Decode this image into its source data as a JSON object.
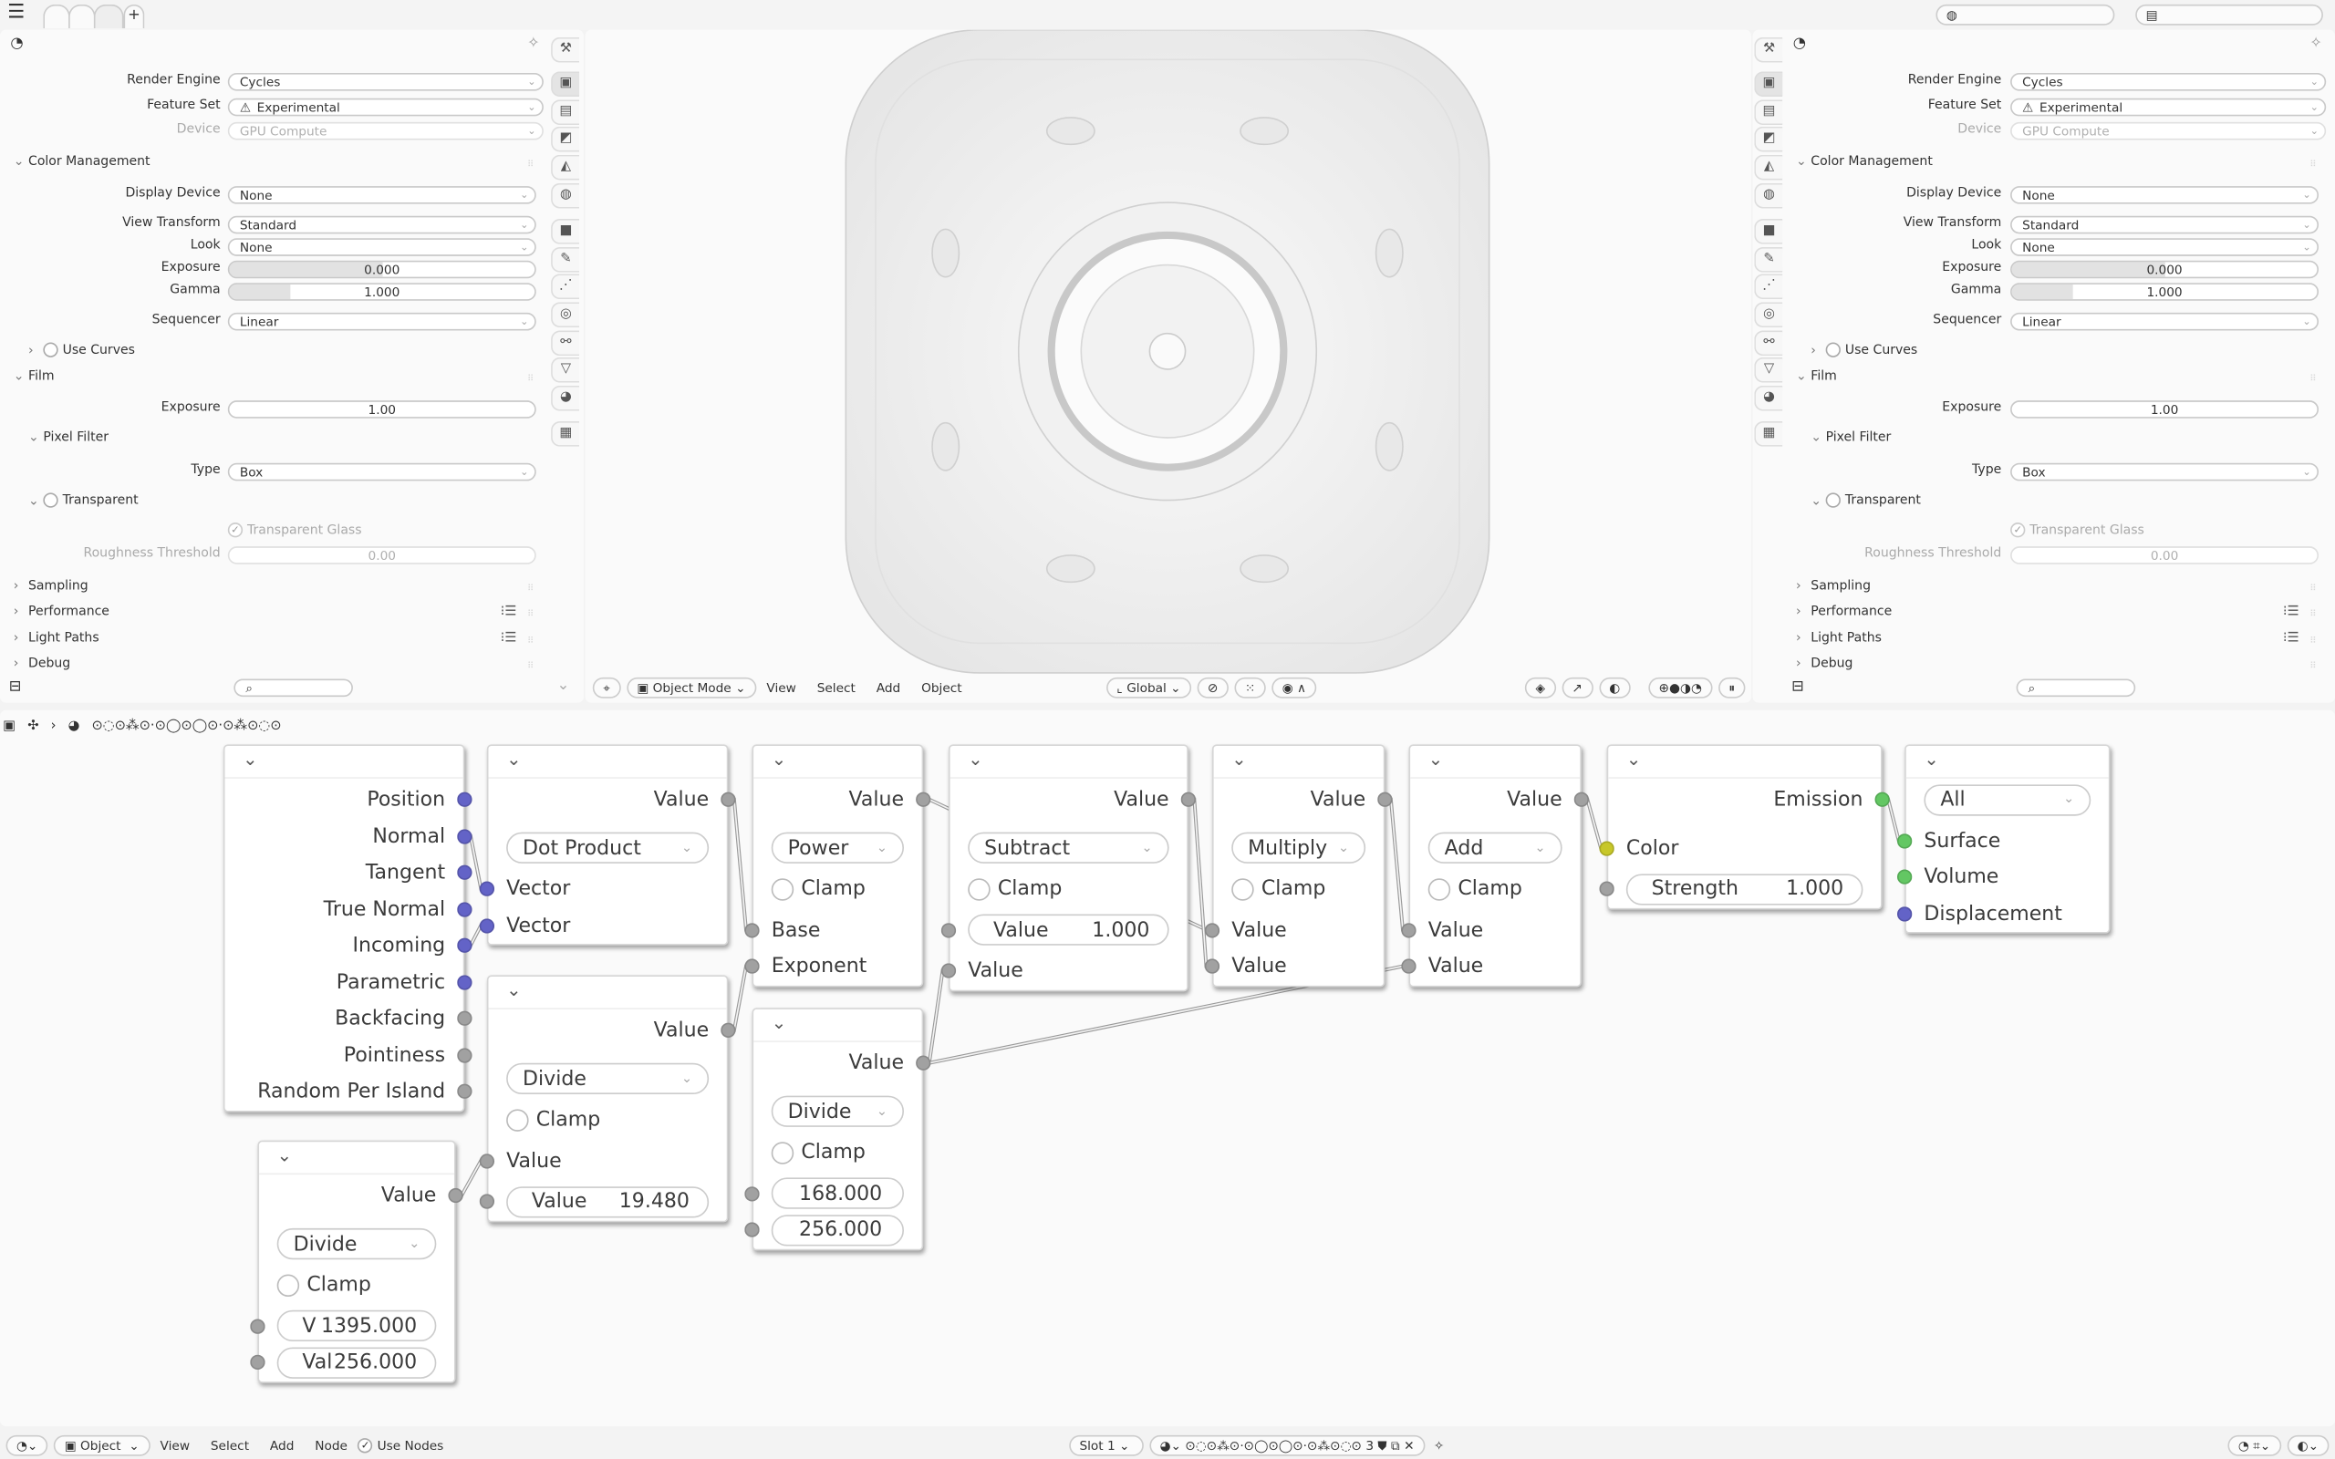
{
  "colors": {
    "socket_vector": "#6363c7",
    "socket_float": "#a1a1a1",
    "socket_color": "#c7c729",
    "socket_shader": "#63c763",
    "background": "#fafafa"
  },
  "topbar": {
    "menu_icon": "hamburger-icon",
    "add_tab": "+"
  },
  "properties": {
    "rows": [
      {
        "kind": "select",
        "label": "Render Engine",
        "value": "Cycles"
      },
      {
        "kind": "select-warn",
        "label": "Feature Set",
        "value": "Experimental"
      },
      {
        "kind": "select-dis",
        "label": "Device",
        "value": "GPU Compute"
      },
      {
        "kind": "section-open",
        "label": "Color Management"
      },
      {
        "kind": "select",
        "label": "Display Device",
        "value": "None"
      },
      {
        "kind": "select",
        "label": "View Transform",
        "value": "Standard"
      },
      {
        "kind": "select",
        "label": "Look",
        "value": "None"
      },
      {
        "kind": "slider",
        "label": "Exposure",
        "value": "0.000",
        "fill": 0.5
      },
      {
        "kind": "slider",
        "label": "Gamma",
        "value": "1.000",
        "fill": 0.2
      },
      {
        "kind": "select",
        "label": "Sequencer",
        "value": "Linear"
      },
      {
        "kind": "subcheck-closed",
        "label": "Use Curves",
        "checked": false
      },
      {
        "kind": "section-open",
        "label": "Film"
      },
      {
        "kind": "number",
        "label": "Exposure",
        "value": "1.00"
      },
      {
        "kind": "sub-open",
        "label": "Pixel Filter"
      },
      {
        "kind": "select",
        "label": "Type",
        "value": "Box"
      },
      {
        "kind": "subcheck-open",
        "label": "Transparent",
        "checked": false
      },
      {
        "kind": "check-dis",
        "label": "Transparent Glass",
        "checked": true
      },
      {
        "kind": "number-dis",
        "label": "Roughness Threshold",
        "value": "0.00"
      },
      {
        "kind": "section-closed",
        "label": "Sampling"
      },
      {
        "kind": "section-list",
        "label": "Performance"
      },
      {
        "kind": "section-list",
        "label": "Light Paths"
      },
      {
        "kind": "section-closed",
        "label": "Debug"
      }
    ],
    "tabs": [
      "tool",
      "render",
      "output",
      "view-layer",
      "scene",
      "world",
      "object",
      "modifiers",
      "particles",
      "physics",
      "constraints",
      "data",
      "material",
      "texture"
    ]
  },
  "viewport": {
    "header": {
      "mode": "Object Mode",
      "menus": [
        "View",
        "Select",
        "Add",
        "Object"
      ],
      "orientation": "Global"
    }
  },
  "node_editor": {
    "breadcrumb": "⊙◌⊙⁂⊙·⊙◯⊙◯⊙·⊙⁂⊙◌⊙",
    "nodes": [
      {
        "id": "geometry",
        "rows": [
          {
            "t": "out",
            "label": "Position",
            "s": "vector"
          },
          {
            "t": "out",
            "label": "Normal",
            "s": "vector"
          },
          {
            "t": "out",
            "label": "Tangent",
            "s": "vector"
          },
          {
            "t": "out",
            "label": "True Normal",
            "s": "vector"
          },
          {
            "t": "out",
            "label": "Incoming",
            "s": "vector"
          },
          {
            "t": "out",
            "label": "Parametric",
            "s": "vector"
          },
          {
            "t": "out",
            "label": "Backfacing",
            "s": "float"
          },
          {
            "t": "out",
            "label": "Pointiness",
            "s": "float"
          },
          {
            "t": "out",
            "label": "Random Per Island",
            "s": "float"
          }
        ]
      },
      {
        "id": "dot-product",
        "rows": [
          {
            "t": "out",
            "label": "Value",
            "s": "float"
          },
          {
            "t": "dd",
            "label": "Dot Product"
          },
          {
            "t": "in",
            "label": "Vector",
            "s": "vector"
          },
          {
            "t": "in",
            "label": "Vector",
            "s": "vector"
          }
        ]
      },
      {
        "id": "divide-a",
        "rows": [
          {
            "t": "out",
            "label": "Value",
            "s": "float"
          },
          {
            "t": "dd",
            "label": "Divide"
          },
          {
            "t": "cb",
            "label": "Clamp"
          },
          {
            "t": "in",
            "label": "Value",
            "s": "float"
          },
          {
            "t": "field",
            "label": "Value",
            "value": "19.480",
            "s": "float"
          }
        ]
      },
      {
        "id": "divide-b",
        "rows": [
          {
            "t": "out",
            "label": "Value",
            "s": "float"
          },
          {
            "t": "dd",
            "label": "Divide"
          },
          {
            "t": "cb",
            "label": "Clamp"
          },
          {
            "t": "field",
            "label": "V",
            "value": "1395.000",
            "s": "float"
          },
          {
            "t": "field",
            "label": "Val",
            "value": "256.000",
            "s": "float"
          }
        ]
      },
      {
        "id": "power",
        "rows": [
          {
            "t": "out",
            "label": "Value",
            "s": "float"
          },
          {
            "t": "dd",
            "label": "Power"
          },
          {
            "t": "cb",
            "label": "Clamp"
          },
          {
            "t": "in",
            "label": "Base",
            "s": "float"
          },
          {
            "t": "in",
            "label": "Exponent",
            "s": "float"
          }
        ]
      },
      {
        "id": "divide-c",
        "rows": [
          {
            "t": "out",
            "label": "Value",
            "s": "float"
          },
          {
            "t": "dd",
            "label": "Divide"
          },
          {
            "t": "cb",
            "label": "Clamp"
          },
          {
            "t": "field",
            "label": "",
            "value": "168.000",
            "s": "float"
          },
          {
            "t": "field",
            "label": "",
            "value": "256.000",
            "s": "float"
          }
        ]
      },
      {
        "id": "subtract",
        "rows": [
          {
            "t": "out",
            "label": "Value",
            "s": "float"
          },
          {
            "t": "dd",
            "label": "Subtract"
          },
          {
            "t": "cb",
            "label": "Clamp"
          },
          {
            "t": "field",
            "label": "Value",
            "value": "1.000",
            "s": "float"
          },
          {
            "t": "in",
            "label": "Value",
            "s": "float"
          }
        ]
      },
      {
        "id": "multiply",
        "rows": [
          {
            "t": "out",
            "label": "Value",
            "s": "float"
          },
          {
            "t": "dd",
            "label": "Multiply"
          },
          {
            "t": "cb",
            "label": "Clamp"
          },
          {
            "t": "in",
            "label": "Value",
            "s": "float"
          },
          {
            "t": "in",
            "label": "Value",
            "s": "float"
          }
        ]
      },
      {
        "id": "add",
        "rows": [
          {
            "t": "out",
            "label": "Value",
            "s": "float"
          },
          {
            "t": "dd",
            "label": "Add"
          },
          {
            "t": "cb",
            "label": "Clamp"
          },
          {
            "t": "in",
            "label": "Value",
            "s": "float"
          },
          {
            "t": "in",
            "label": "Value",
            "s": "float"
          }
        ]
      },
      {
        "id": "emission",
        "rows": [
          {
            "t": "out",
            "label": "Emission",
            "s": "shader"
          },
          {
            "t": "in",
            "label": "Color",
            "s": "color"
          },
          {
            "t": "field",
            "label": "Strength",
            "value": "1.000",
            "s": "float"
          }
        ]
      },
      {
        "id": "material-output",
        "rows": [
          {
            "t": "dd",
            "label": "All"
          },
          {
            "t": "in",
            "label": "Surface",
            "s": "shader"
          },
          {
            "t": "in",
            "label": "Volume",
            "s": "shader"
          },
          {
            "t": "in",
            "label": "Displacement",
            "s": "vector"
          }
        ]
      }
    ],
    "links": [
      {
        "from": [
          "geometry",
          1
        ],
        "to": [
          "dot-product",
          2
        ]
      },
      {
        "from": [
          "geometry",
          4
        ],
        "to": [
          "dot-product",
          3
        ]
      },
      {
        "from": [
          "dot-product",
          0
        ],
        "to": [
          "power",
          3
        ]
      },
      {
        "from": [
          "divide-a",
          0
        ],
        "to": [
          "power",
          4
        ]
      },
      {
        "from": [
          "divide-b",
          0
        ],
        "to": [
          "divide-a",
          3
        ]
      },
      {
        "from": [
          "power",
          0
        ],
        "to": [
          "multiply",
          3
        ]
      },
      {
        "from": [
          "divide-c",
          0
        ],
        "to": [
          "subtract",
          4
        ]
      },
      {
        "from": [
          "divide-c",
          0
        ],
        "to": [
          "add",
          4
        ]
      },
      {
        "from": [
          "subtract",
          0
        ],
        "to": [
          "multiply",
          4
        ]
      },
      {
        "from": [
          "multiply",
          0
        ],
        "to": [
          "add",
          3
        ]
      },
      {
        "from": [
          "add",
          0
        ],
        "to": [
          "emission",
          1
        ]
      },
      {
        "from": [
          "emission",
          0
        ],
        "to": [
          "material-output",
          1
        ]
      }
    ]
  },
  "footer": {
    "editor": "Object",
    "menus": [
      "View",
      "Select",
      "Add",
      "Node"
    ],
    "use_nodes": "Use Nodes",
    "use_nodes_checked": true,
    "slot": "Slot 1",
    "material_name": "⊙◌⊙⁂⊙·⊙◯⊙◯⊙·⊙⁂⊙◌⊙",
    "users": "3"
  }
}
